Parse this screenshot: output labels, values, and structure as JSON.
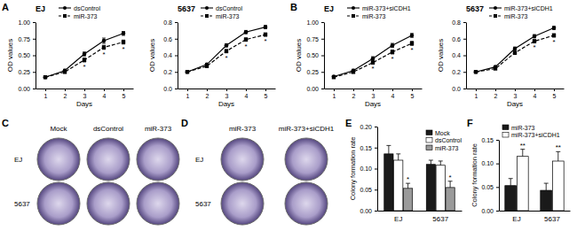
{
  "chart_data": [
    {
      "panel": "A",
      "type": "line",
      "title": "EJ",
      "x_label": "Days",
      "y_label": "OD values",
      "x": [
        1,
        2,
        3,
        4,
        5
      ],
      "xlim": [
        0.5,
        5.5
      ],
      "xticks": [
        1,
        2,
        3,
        4,
        5
      ],
      "ylim": [
        0,
        1
      ],
      "yticks": [
        {
          "value": 0,
          "label": "0.00"
        },
        0.25,
        {
          "value": 0.5,
          "label": "0.50"
        },
        0.75,
        {
          "value": 1,
          "label": "1.00"
        }
      ],
      "legend": "top",
      "series": [
        {
          "name": "dsControl",
          "color": "#000000",
          "marker": "circle",
          "line_style": "solid",
          "values": [
            0.17,
            0.27,
            0.52,
            0.72,
            0.83
          ],
          "errors": [
            0.01,
            0.02,
            0.03,
            0.04,
            0.03
          ]
        },
        {
          "name": "miR-373",
          "color": "#000000",
          "marker": "square",
          "line_style": "dashed",
          "values": [
            0.17,
            0.25,
            0.43,
            0.62,
            0.7
          ],
          "errors": [
            0.01,
            0.02,
            0.03,
            0.03,
            0.03
          ]
        }
      ],
      "annotations": [
        {
          "x": 3,
          "series": 1,
          "text": "*"
        },
        {
          "x": 4,
          "series": 1,
          "text": "*"
        },
        {
          "x": 5,
          "series": 1,
          "text": "*"
        }
      ]
    },
    {
      "type": "line",
      "title": "5637",
      "x_label": "Days",
      "y_label": "OD values",
      "x": [
        1,
        2,
        3,
        4,
        5
      ],
      "xlim": [
        0.5,
        5.5
      ],
      "xticks": [
        1,
        2,
        3,
        4,
        5
      ],
      "ylim": [
        0,
        0.8
      ],
      "yticks": [
        {
          "value": 0,
          "label": "0.0"
        },
        0.2,
        0.4,
        0.6,
        0.8
      ],
      "legend": "top",
      "series": [
        {
          "name": "dsControl",
          "color": "#000000",
          "marker": "circle",
          "line_style": "solid",
          "values": [
            0.2,
            0.29,
            0.52,
            0.68,
            0.74
          ],
          "errors": [
            0.01,
            0.01,
            0.02,
            0.02,
            0.02
          ]
        },
        {
          "name": "miR-373",
          "color": "#000000",
          "marker": "square",
          "line_style": "dashed",
          "values": [
            0.2,
            0.27,
            0.45,
            0.59,
            0.65
          ],
          "errors": [
            0.01,
            0.01,
            0.02,
            0.02,
            0.02
          ]
        }
      ],
      "annotations": [
        {
          "x": 3,
          "series": 1,
          "text": "*"
        },
        {
          "x": 4,
          "series": 1,
          "text": "*"
        },
        {
          "x": 5,
          "series": 1,
          "text": "*"
        }
      ]
    },
    {
      "panel": "B",
      "type": "line",
      "title": "EJ",
      "x_label": "Days",
      "y_label": "OD values",
      "x": [
        1,
        2,
        3,
        4,
        5
      ],
      "xlim": [
        0.5,
        5.5
      ],
      "xticks": [
        1,
        2,
        3,
        4,
        5
      ],
      "ylim": [
        0,
        1
      ],
      "yticks": [
        {
          "value": 0,
          "label": "0.00"
        },
        0.25,
        {
          "value": 0.5,
          "label": "0.50"
        },
        0.75,
        {
          "value": 1,
          "label": "1.00"
        }
      ],
      "legend": "top",
      "series": [
        {
          "name": "miR-373+siCDH1",
          "color": "#000000",
          "marker": "circle",
          "line_style": "solid",
          "values": [
            0.18,
            0.27,
            0.45,
            0.65,
            0.8
          ],
          "errors": [
            0.01,
            0.02,
            0.03,
            0.03,
            0.03
          ]
        },
        {
          "name": "miR-373",
          "color": "#000000",
          "marker": "square",
          "line_style": "dashed",
          "values": [
            0.17,
            0.25,
            0.39,
            0.55,
            0.68
          ],
          "errors": [
            0.01,
            0.02,
            0.02,
            0.03,
            0.03
          ]
        }
      ],
      "annotations": [
        {
          "x": 3,
          "series": 1,
          "text": "*"
        },
        {
          "x": 4,
          "series": 1,
          "text": "*"
        },
        {
          "x": 5,
          "series": 1,
          "text": "*"
        }
      ]
    },
    {
      "type": "line",
      "title": "5637",
      "x_label": "Days",
      "y_label": "OD values",
      "x": [
        1,
        2,
        3,
        4,
        5
      ],
      "xlim": [
        0.5,
        5.5
      ],
      "xticks": [
        1,
        2,
        3,
        4,
        5
      ],
      "ylim": [
        0,
        0.8
      ],
      "yticks": [
        {
          "value": 0,
          "label": "0.0"
        },
        0.2,
        0.4,
        0.6,
        0.8
      ],
      "legend": "top",
      "series": [
        {
          "name": "miR-373+siCDH1",
          "color": "#000000",
          "marker": "circle",
          "line_style": "solid",
          "values": [
            0.2,
            0.26,
            0.48,
            0.63,
            0.73
          ],
          "errors": [
            0.01,
            0.01,
            0.02,
            0.02,
            0.02
          ]
        },
        {
          "name": "miR-373",
          "color": "#000000",
          "marker": "square",
          "line_style": "dashed",
          "values": [
            0.2,
            0.24,
            0.43,
            0.57,
            0.64
          ],
          "errors": [
            0.01,
            0.01,
            0.02,
            0.02,
            0.02
          ]
        }
      ],
      "annotations": [
        {
          "x": 4,
          "series": 1,
          "text": "*"
        },
        {
          "x": 5,
          "series": 1,
          "text": "*"
        }
      ]
    },
    {
      "panel": "E",
      "type": "bar",
      "y_label": "Colony formation rate",
      "categories": [
        "EJ",
        "5637"
      ],
      "ylim": [
        0,
        0.2
      ],
      "yticks": [
        {
          "value": 0,
          "label": "0.00"
        },
        0.05,
        {
          "value": 0.1,
          "label": "0.10"
        },
        0.15,
        {
          "value": 0.2,
          "label": "0.20"
        }
      ],
      "legend": "top-right",
      "series": [
        {
          "name": "Mock",
          "color": "#1a1a1a",
          "values": [
            0.135,
            0.11
          ],
          "errors": [
            0.02,
            0.01
          ]
        },
        {
          "name": "dsControl",
          "color": "#ffffff",
          "values": [
            0.12,
            0.108
          ],
          "errors": [
            0.015,
            0.01
          ]
        },
        {
          "name": "miR-373",
          "color": "#9a9a9a",
          "values": [
            0.053,
            0.055
          ],
          "errors": [
            0.012,
            0.015
          ]
        }
      ],
      "annotations": [
        {
          "category": 0,
          "series": 2,
          "text": "*"
        },
        {
          "category": 1,
          "series": 2,
          "text": "*"
        }
      ]
    },
    {
      "panel": "F",
      "type": "bar",
      "y_label": "Colony formation rate",
      "categories": [
        "EJ",
        "5637"
      ],
      "ylim": [
        0,
        0.15
      ],
      "yticks": [
        {
          "value": 0,
          "label": "0.00"
        },
        0.05,
        {
          "value": 0.1,
          "label": "0.10"
        },
        0.15
      ],
      "legend": "top",
      "series": [
        {
          "name": "miR-373",
          "color": "#1a1a1a",
          "values": [
            0.053,
            0.043
          ],
          "errors": [
            0.015,
            0.015
          ]
        },
        {
          "name": "miR-373+siCDH1",
          "color": "#ffffff",
          "values": [
            0.115,
            0.105
          ],
          "errors": [
            0.015,
            0.02
          ]
        }
      ],
      "annotations": [
        {
          "category": 0,
          "series": 1,
          "text": "**"
        },
        {
          "category": 1,
          "series": 1,
          "text": "**"
        }
      ]
    }
  ],
  "photo_panels": [
    {
      "panel": "C",
      "columns": [
        "Mock",
        "dsControl",
        "miR-373"
      ],
      "rows": [
        "EJ",
        "5637"
      ]
    },
    {
      "panel": "D",
      "columns": [
        "miR-373",
        "miR-373+siCDH1"
      ],
      "rows": [
        "EJ",
        "5637"
      ]
    }
  ]
}
